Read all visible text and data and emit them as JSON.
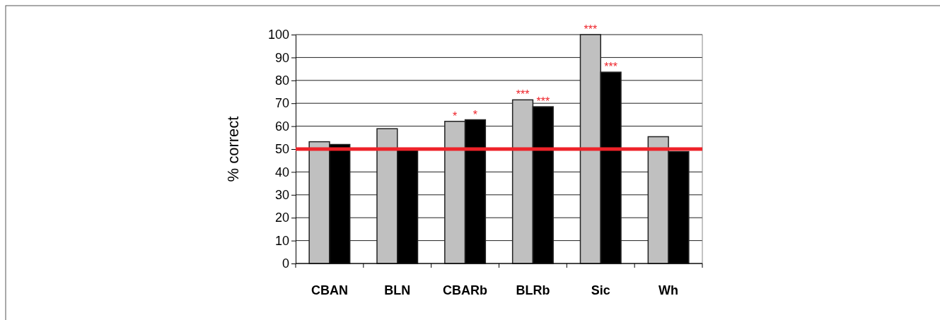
{
  "chart_data": {
    "type": "bar",
    "ylabel": "% correct",
    "categories": [
      "CBAN",
      "BLN",
      "CBARb",
      "BLRb",
      "Sic",
      "Wh"
    ],
    "series": [
      {
        "color": "#c0c0c0",
        "values": [
          53.2,
          58.9,
          62.1,
          71.5,
          100,
          55.4
        ],
        "value_labels": [
          null,
          null,
          "*",
          "***",
          "***",
          null
        ]
      },
      {
        "color": "#000000",
        "values": [
          52.0,
          49.8,
          62.8,
          68.5,
          83.6,
          48.9
        ],
        "value_labels": [
          null,
          null,
          "*",
          "***",
          "***",
          null
        ]
      }
    ],
    "ylim": [
      0,
      100
    ],
    "yticks": [
      0,
      10,
      20,
      30,
      40,
      50,
      60,
      70,
      80,
      90,
      100
    ],
    "grid": "y",
    "ref_lines": [
      {
        "axis": "y",
        "value": 50,
        "color": "#ee2229"
      }
    ]
  }
}
